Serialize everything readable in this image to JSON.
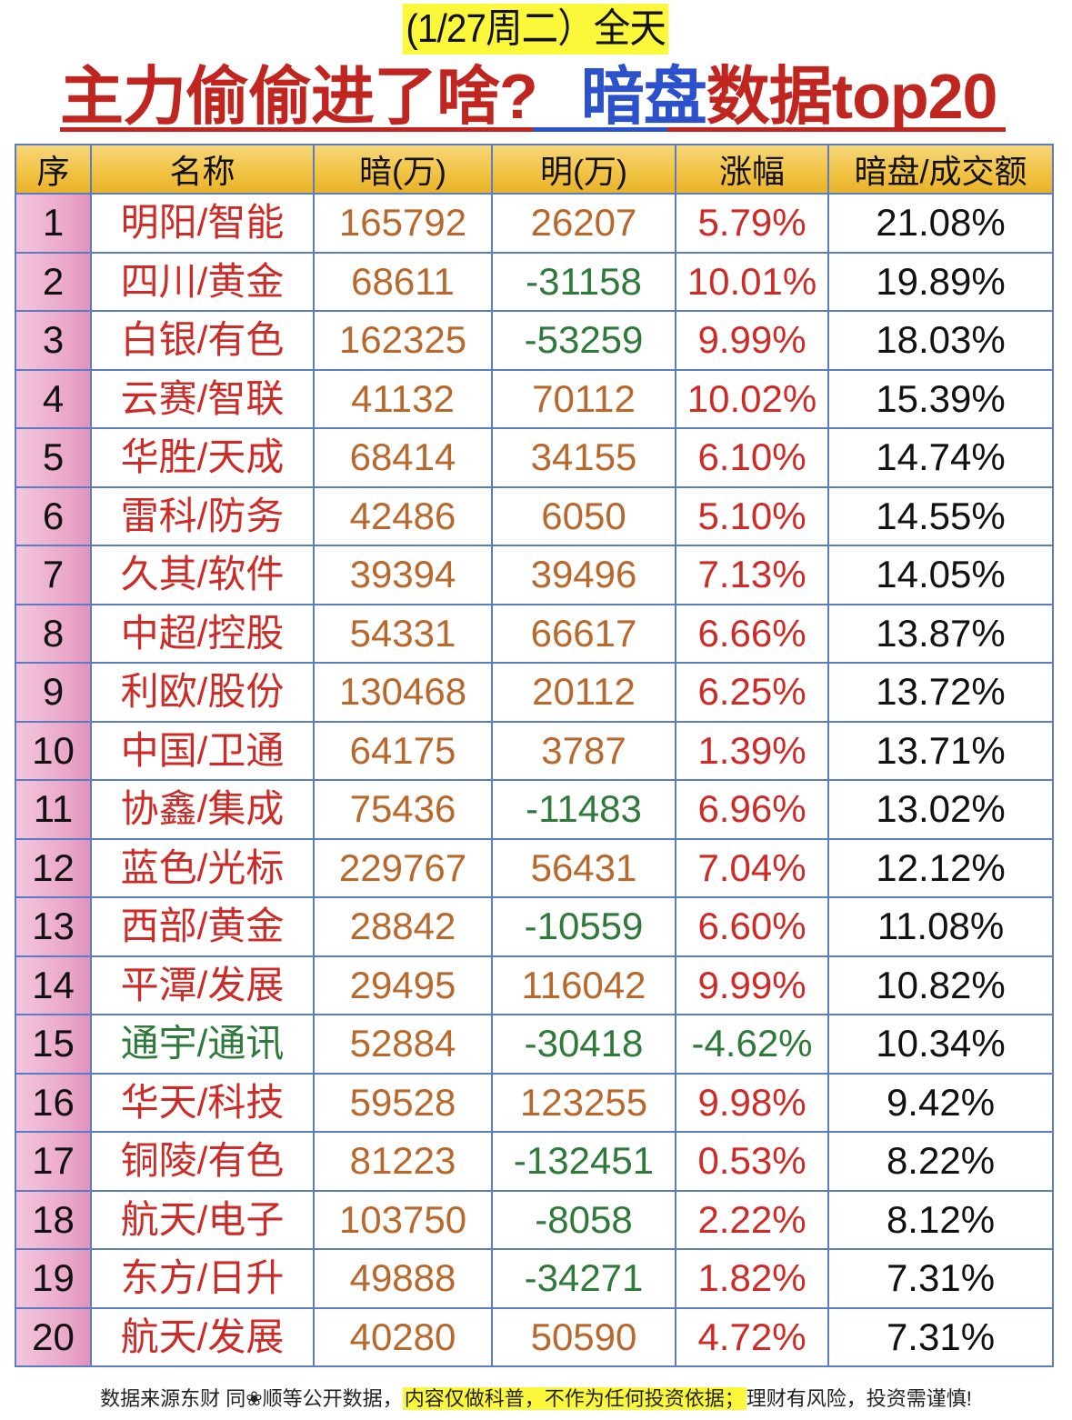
{
  "header": {
    "subtitle": "(1/27周二）全天",
    "headline_part1": "主力偷偷进了啥?",
    "headline_part2": "暗盘",
    "headline_part3": "数据top20"
  },
  "colors": {
    "headline_red": "#c0251f",
    "headline_blue": "#2b52cc",
    "highlight_yellow": "#fbf73a",
    "header_gold": "#f2c446",
    "index_pink": "#eaa7c8",
    "grid_blue": "#5b7cc4",
    "positive_red": "#cc2b27",
    "negative_green": "#2f7a3a",
    "amount_brown": "#b8682c"
  },
  "table": {
    "columns": [
      "序",
      "名称",
      "暗(万)",
      "明(万)",
      "涨幅",
      "暗盘/成交额"
    ],
    "rows": [
      {
        "rank": "1",
        "name": "明阳/智能",
        "dark": "165792",
        "lit": "26207",
        "change": "5.79%",
        "ratio": "21.08%",
        "name_color": "red",
        "lit_color": "brown",
        "change_color": "red"
      },
      {
        "rank": "2",
        "name": "四川/黄金",
        "dark": "68611",
        "lit": "-31158",
        "change": "10.01%",
        "ratio": "19.89%",
        "name_color": "red",
        "lit_color": "green",
        "change_color": "red"
      },
      {
        "rank": "3",
        "name": "白银/有色",
        "dark": "162325",
        "lit": "-53259",
        "change": "9.99%",
        "ratio": "18.03%",
        "name_color": "red",
        "lit_color": "green",
        "change_color": "red"
      },
      {
        "rank": "4",
        "name": "云赛/智联",
        "dark": "41132",
        "lit": "70112",
        "change": "10.02%",
        "ratio": "15.39%",
        "name_color": "red",
        "lit_color": "brown",
        "change_color": "red"
      },
      {
        "rank": "5",
        "name": "华胜/天成",
        "dark": "68414",
        "lit": "34155",
        "change": "6.10%",
        "ratio": "14.74%",
        "name_color": "red",
        "lit_color": "brown",
        "change_color": "red"
      },
      {
        "rank": "6",
        "name": "雷科/防务",
        "dark": "42486",
        "lit": "6050",
        "change": "5.10%",
        "ratio": "14.55%",
        "name_color": "red",
        "lit_color": "brown",
        "change_color": "red"
      },
      {
        "rank": "7",
        "name": "久其/软件",
        "dark": "39394",
        "lit": "39496",
        "change": "7.13%",
        "ratio": "14.05%",
        "name_color": "red",
        "lit_color": "brown",
        "change_color": "red"
      },
      {
        "rank": "8",
        "name": "中超/控股",
        "dark": "54331",
        "lit": "66617",
        "change": "6.66%",
        "ratio": "13.87%",
        "name_color": "red",
        "lit_color": "brown",
        "change_color": "red"
      },
      {
        "rank": "9",
        "name": "利欧/股份",
        "dark": "130468",
        "lit": "20112",
        "change": "6.25%",
        "ratio": "13.72%",
        "name_color": "red",
        "lit_color": "brown",
        "change_color": "red"
      },
      {
        "rank": "10",
        "name": "中国/卫通",
        "dark": "64175",
        "lit": "3787",
        "change": "1.39%",
        "ratio": "13.71%",
        "name_color": "red",
        "lit_color": "brown",
        "change_color": "red"
      },
      {
        "rank": "11",
        "name": "协鑫/集成",
        "dark": "75436",
        "lit": "-11483",
        "change": "6.96%",
        "ratio": "13.02%",
        "name_color": "red",
        "lit_color": "green",
        "change_color": "red"
      },
      {
        "rank": "12",
        "name": "蓝色/光标",
        "dark": "229767",
        "lit": "56431",
        "change": "7.04%",
        "ratio": "12.12%",
        "name_color": "red",
        "lit_color": "brown",
        "change_color": "red"
      },
      {
        "rank": "13",
        "name": "西部/黄金",
        "dark": "28842",
        "lit": "-10559",
        "change": "6.60%",
        "ratio": "11.08%",
        "name_color": "red",
        "lit_color": "green",
        "change_color": "red"
      },
      {
        "rank": "14",
        "name": "平潭/发展",
        "dark": "29495",
        "lit": "116042",
        "change": "9.99%",
        "ratio": "10.82%",
        "name_color": "red",
        "lit_color": "brown",
        "change_color": "red"
      },
      {
        "rank": "15",
        "name": "通宇/通讯",
        "dark": "52884",
        "lit": "-30418",
        "change": "-4.62%",
        "ratio": "10.34%",
        "name_color": "green",
        "lit_color": "green",
        "change_color": "green"
      },
      {
        "rank": "16",
        "name": "华天/科技",
        "dark": "59528",
        "lit": "123255",
        "change": "9.98%",
        "ratio": "9.42%",
        "name_color": "red",
        "lit_color": "brown",
        "change_color": "red"
      },
      {
        "rank": "17",
        "name": "铜陵/有色",
        "dark": "81223",
        "lit": "-132451",
        "change": "0.53%",
        "ratio": "8.22%",
        "name_color": "red",
        "lit_color": "green",
        "change_color": "red"
      },
      {
        "rank": "18",
        "name": "航天/电子",
        "dark": "103750",
        "lit": "-8058",
        "change": "2.22%",
        "ratio": "8.12%",
        "name_color": "red",
        "lit_color": "green",
        "change_color": "red"
      },
      {
        "rank": "19",
        "name": "东方/日升",
        "dark": "49888",
        "lit": "-34271",
        "change": "1.82%",
        "ratio": "7.31%",
        "name_color": "red",
        "lit_color": "green",
        "change_color": "red"
      },
      {
        "rank": "20",
        "name": "航天/发展",
        "dark": "40280",
        "lit": "50590",
        "change": "4.72%",
        "ratio": "7.31%",
        "name_color": "red",
        "lit_color": "brown",
        "change_color": "red"
      }
    ]
  },
  "footer": {
    "source": "数据来源东财 同❀顺等公开数据，",
    "disclaimer": "内容仅做科普，不作为任何投资依据；",
    "risk": "理财有风险，投资需谨慎!"
  }
}
